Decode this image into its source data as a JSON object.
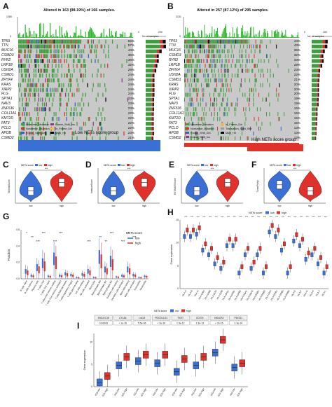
{
  "panelA": {
    "label": "A",
    "title": "Altered in 163 (98.19%) of 166 samples.",
    "ymax": "1265",
    "ymin": "0",
    "axis_max": "200",
    "axis_zero": "0",
    "axis_title": "No. of samples",
    "genes": [
      "TP53",
      "TTN",
      "MUC16",
      "CSMD3",
      "RYR2",
      "LRP1B",
      "USH2A",
      "CSMD1",
      "ZFHX4",
      "KRAS",
      "XIRP2",
      "FLG",
      "SPTA1",
      "NAV3",
      "ZNF536",
      "COL11A1",
      "KMT2D",
      "FAT3",
      "PCLO",
      "APOB",
      "CSMD2"
    ],
    "pcts": [
      "55%",
      "57%",
      "44%",
      "36%",
      "36%",
      "32%",
      "29%",
      "24%",
      "24%",
      "24%",
      "24%",
      "24%",
      "23%",
      "23%",
      "23%",
      "22%",
      "22%",
      "22%",
      "22%",
      "23%",
      "21%"
    ],
    "legend": [
      "Missense_Mutation",
      "Nonsense_Mutation",
      "Frame_Shift_Del",
      "Frame_Shift_Ins",
      "In_Frame_Del",
      "Multi_Hit"
    ],
    "group": "Low NETs score group"
  },
  "panelB": {
    "label": "B",
    "title": "Altered in 257 (87.12%) of 295 samples.",
    "ymax": "2131",
    "ymin": "0",
    "axis_max": "150",
    "axis_zero": "0",
    "axis_title": "No. of samples",
    "genes": [
      "TP53",
      "TTN",
      "MUC16",
      "CSMD3",
      "RYR2",
      "LRP1B",
      "ZFHX4",
      "USH2A",
      "CSMD1",
      "KRAS",
      "XIRP2",
      "FLG",
      "SPTA1",
      "NAV3",
      "ZNF536",
      "COL11A1",
      "KMT2D",
      "FAT3",
      "PCLO",
      "APOB",
      "CSMD2"
    ],
    "pcts": [
      "44%",
      "43%",
      "36%",
      "32%",
      "33%",
      "29%",
      "23%",
      "22%",
      "21%",
      "20%",
      "20%",
      "20%",
      "19%",
      "19%",
      "16%",
      "16%",
      "15%",
      "15%",
      "13%",
      "13%",
      "12%"
    ],
    "legend": [
      "Missense_Mutation",
      "Nonsense_Mutation",
      "Frame_Shift_Del",
      "In_Frame_Del",
      "Translation_Start_Site",
      "Multi_Hit",
      "Frame_Shift_Ins"
    ],
    "group": "High NETs score group"
  },
  "violins": [
    {
      "label": "C",
      "sig": "***",
      "legend_title": "NETs score",
      "low": "low",
      "high": "high",
      "ylabel": "StromalScore",
      "xlabels": [
        "low",
        "high"
      ]
    },
    {
      "label": "D",
      "sig": "***",
      "legend_title": "NETs score",
      "low": "low",
      "high": "high",
      "ylabel": "ImmuneScore",
      "xlabels": [
        "low",
        "high"
      ]
    },
    {
      "label": "E",
      "sig": "***",
      "legend_title": "NETs score",
      "low": "low",
      "high": "high",
      "ylabel": "ESTIMATEScore",
      "xlabels": [
        "low",
        "high"
      ]
    },
    {
      "label": "F",
      "sig": "***",
      "legend_title": "NETs score",
      "low": "low",
      "high": "high",
      "ylabel": "TumorPurity",
      "xlabels": [
        "low",
        "high"
      ]
    }
  ],
  "panelG": {
    "label": "G",
    "ylabel": "Fraction",
    "legend_title": "NETs score",
    "low": "low",
    "high": "high",
    "yticks": [
      "0.0",
      "0.2",
      "0.4",
      "0.6"
    ],
    "cells": [
      "B cells naive",
      "B cells memory",
      "Plasma cells",
      "T cells CD8",
      "T cells CD4 naive",
      "T cells CD4 memory resting",
      "T cells CD4 memory activated",
      "T cells follicular helper",
      "T cells regulatory (Tregs)",
      "T cells gamma delta",
      "NK cells resting",
      "NK cells activated",
      "Monocytes",
      "Macrophages M0",
      "Macrophages M1",
      "Macrophages M2",
      "Dendritic cells resting",
      "Dendritic cells activated",
      "Mast cells resting",
      "Mast cells activated",
      "Eosinophils",
      "Neutrophils"
    ],
    "sigs": [
      "*",
      "**",
      "***",
      "***",
      "",
      "***",
      "***",
      "",
      "",
      "",
      "",
      "***",
      "",
      "**",
      "**",
      "***",
      "",
      "***",
      "*",
      "***",
      "",
      ""
    ]
  },
  "panelH": {
    "label": "H",
    "legend_title": "NETs score",
    "low": "low",
    "high": "high",
    "ylabel": "Gene expression",
    "yticks": [
      "0",
      "5",
      "10",
      "15"
    ],
    "genes": [
      "HLA-A",
      "HLA-B",
      "HLA-C",
      "HLA-DMA",
      "HLA-DMB",
      "HLA-DOA",
      "HLA-DOB",
      "HLA-DPA1",
      "HLA-DPB1",
      "HLA-DPB2",
      "HLA-DQA1",
      "HLA-DQA2",
      "HLA-DQB1",
      "HLA-DQB2",
      "HLA-DRA",
      "HLA-DRB1",
      "HLA-DRB5",
      "HLA-DRB6",
      "HLA-E",
      "HLA-F",
      "HLA-G",
      "HLA-H",
      "HLA-J",
      "HLA-L"
    ]
  },
  "panelI": {
    "label": "I",
    "legend_title": "NETs score",
    "low": "low",
    "high": "high",
    "ylabel": "Gene expression",
    "yticks": [
      "0",
      "5",
      "10"
    ],
    "genes": [
      {
        "name": "SIGLEC15",
        "p": "0.00043"
      },
      {
        "name": "CTLA4",
        "p": "< 1e-16"
      },
      {
        "name": "LAG3",
        "p": "5.5e-06"
      },
      {
        "name": "PDCD1LG2",
        "p": "< 2e-16"
      },
      {
        "name": "TIGIT",
        "p": "1.3e-12"
      },
      {
        "name": "CD274",
        "p": "1.3e-13"
      },
      {
        "name": "HAVCR2",
        "p": "< 2e-16"
      },
      {
        "name": "PDCD1",
        "p": "1.3e-14"
      }
    ],
    "xlabels": [
      "ICG-low",
      "ICG-high",
      "ICG-low",
      "ICG-high",
      "ICG-low",
      "ICG-high",
      "ICG-low",
      "ICG-high",
      "ICG-low",
      "ICG-high",
      "ICG-low",
      "ICG-high",
      "ICG-low",
      "ICG-high",
      "ICG-low",
      "ICG-high"
    ]
  },
  "colors": {
    "low": "#3a6fd6",
    "high": "#e0312a",
    "green": "#2eb82e",
    "mut_missense": "#3f9e3f",
    "mut_nonsense": "#e03030",
    "mut_fsdel": "#3a5fcd",
    "mut_fsins": "#8b3a8b",
    "mut_inframe": "#f2c12e",
    "mut_multi": "#000000",
    "grid_bg": "#c9c9c9"
  }
}
